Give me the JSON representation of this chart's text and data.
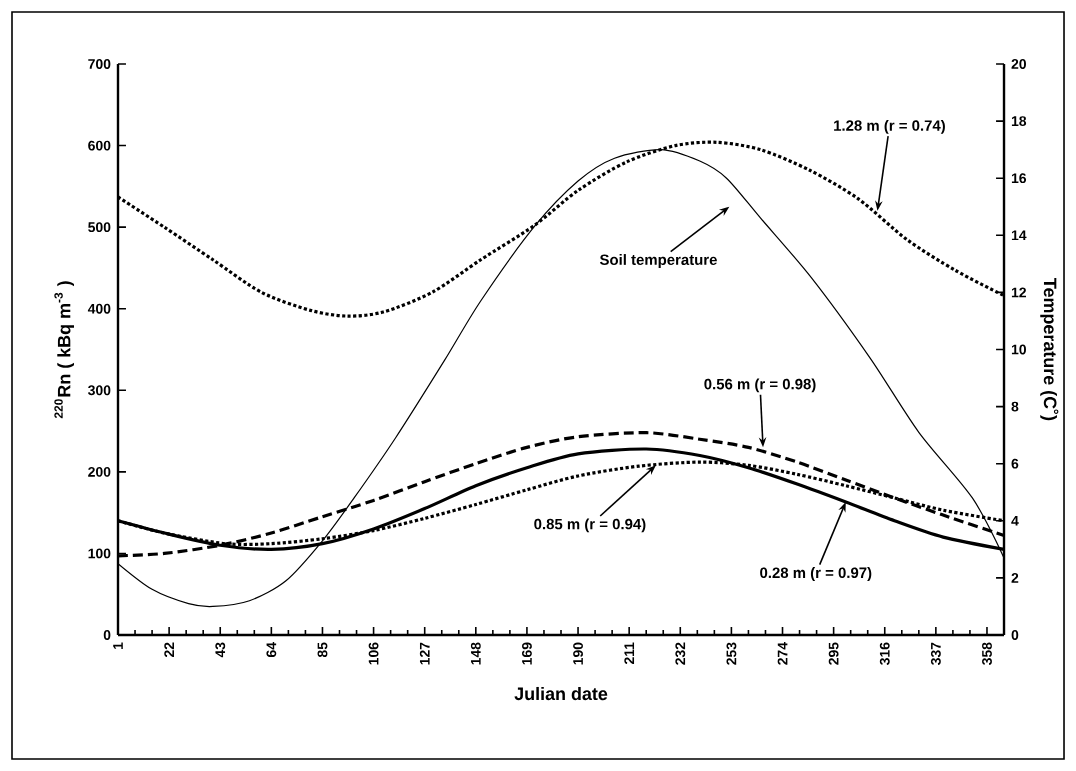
{
  "chart_data": {
    "type": "line",
    "xlabel": "Julian date",
    "ylabel": "$^{220}$Rn ( kBq m$^{-3}$ )",
    "y2label": "Temperature (C˚)",
    "xlim": [
      1,
      365
    ],
    "xticks": [
      1,
      22,
      43,
      64,
      85,
      106,
      127,
      148,
      169,
      190,
      211,
      232,
      253,
      274,
      295,
      316,
      337,
      358
    ],
    "ylim": [
      0,
      700
    ],
    "yticks": [
      0,
      100,
      200,
      300,
      400,
      500,
      600,
      700
    ],
    "y2lim": [
      0,
      20
    ],
    "y2ticks": [
      0,
      2,
      4,
      6,
      8,
      10,
      12,
      14,
      16,
      18,
      20
    ],
    "grid": false,
    "series": [
      {
        "color": "#000000",
        "line_style": "dotted",
        "x": [
          1,
          20,
          40,
          60,
          80,
          95,
          110,
          130,
          150,
          172,
          190,
          210,
          230,
          247,
          265,
          285,
          305,
          325,
          345,
          365
        ],
        "values": [
          537,
          500,
          460,
          420,
          398,
          391,
          396,
          420,
          460,
          502,
          545,
          580,
          600,
          604,
          595,
          570,
          535,
          485,
          447,
          416
        ]
      },
      {
        "color": "#000000",
        "line_style": "solid",
        "axis": "y2",
        "x": [
          1,
          15,
          30,
          40,
          55,
          70,
          85,
          98,
          115,
          135,
          150,
          172,
          190,
          205,
          224,
          240,
          251,
          265,
          286,
          310,
          330,
          352,
          365
        ],
        "values": [
          2.5,
          1.6,
          1.1,
          1.0,
          1.2,
          1.9,
          3.3,
          4.8,
          6.9,
          9.6,
          11.7,
          14.3,
          15.9,
          16.7,
          17.0,
          16.6,
          16.0,
          14.6,
          12.5,
          9.7,
          7.1,
          4.8,
          2.7
        ]
      },
      {
        "color": "#000000",
        "line_style": "dashed",
        "x": [
          1,
          20,
          43,
          64,
          85,
          106,
          127,
          148,
          169,
          190,
          218,
          240,
          260,
          280,
          300,
          320,
          340,
          365
        ],
        "values": [
          97,
          100,
          110,
          125,
          145,
          165,
          188,
          210,
          230,
          243,
          248,
          240,
          230,
          212,
          190,
          168,
          147,
          122
        ]
      },
      {
        "color": "#000000",
        "line_style": "dotted",
        "x": [
          1,
          20,
          45,
          64,
          85,
          106,
          127,
          148,
          169,
          190,
          215,
          240,
          260,
          280,
          300,
          320,
          340,
          365
        ],
        "values": [
          140,
          125,
          112,
          112,
          118,
          128,
          143,
          160,
          178,
          195,
          207,
          212,
          208,
          197,
          183,
          168,
          153,
          140
        ]
      },
      {
        "color": "#000000",
        "line_style": "solid",
        "x": [
          1,
          20,
          43,
          64,
          85,
          106,
          127,
          148,
          169,
          190,
          218,
          240,
          260,
          280,
          300,
          320,
          340,
          365
        ],
        "values": [
          140,
          125,
          110,
          105,
          112,
          130,
          155,
          183,
          205,
          222,
          228,
          220,
          205,
          185,
          163,
          140,
          120,
          105
        ]
      }
    ],
    "annotations": [
      {
        "text": "1.28 m (r = 0.74)",
        "x": 313,
        "y": 520
      },
      "Soil temperature",
      {
        "text": "0.56 m (r = 0.98)",
        "x": 266,
        "y": 230
      },
      {
        "text": "0.85 m (r = 0.94)",
        "x": 222,
        "y": 208
      },
      {
        "text": "0.28 m (r = 0.97)",
        "x": 300,
        "y": 163
      }
    ]
  }
}
